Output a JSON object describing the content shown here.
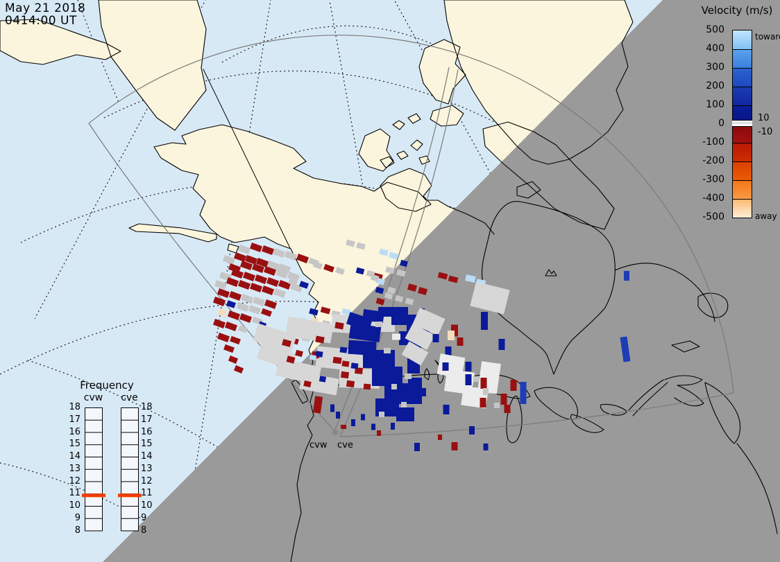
{
  "title_block": {
    "line1": "May 21 2018",
    "line2": "0414:00 UT"
  },
  "colorbar": {
    "title": "Velocity (m/s)",
    "toward": "toward",
    "away": "away",
    "zero_upper": "10",
    "zero_lower": "-10",
    "ticks": [
      "500",
      "400",
      "300",
      "200",
      "100",
      "0",
      "-100",
      "-200",
      "-300",
      "-400",
      "-500"
    ],
    "blocks": [
      [
        "#c3e5ff",
        "#7fc1f5"
      ],
      [
        "#59a2ec",
        "#3a7fdd"
      ],
      [
        "#2c63cf",
        "#1e49bd"
      ],
      [
        "#1a3cb0",
        "#10289f"
      ],
      [
        "#0b1d97",
        "#071384"
      ],
      [
        "#8a0b0b",
        "#a31111"
      ],
      [
        "#b81a06",
        "#cb2d03"
      ],
      [
        "#d94100",
        "#e85b07"
      ],
      [
        "#f2761a",
        "#f99a45"
      ],
      [
        "#fdba75",
        "#ffeed6"
      ]
    ]
  },
  "frequency_panel": {
    "title": "Frequency",
    "col1": "cvw",
    "col2": "cve",
    "scale": [
      18,
      17,
      16,
      15,
      14,
      13,
      12,
      11,
      10,
      9,
      8
    ],
    "markers": {
      "cvw": 10.85,
      "cve": 10.85
    },
    "marker_color": "#f23d00"
  },
  "radar_labels": {
    "west": "cvw",
    "east": "cve"
  },
  "map": {
    "colors": {
      "ocean": "#d8e9f6",
      "land": "#faf5dc",
      "night": "#9a9a9a",
      "coast": "#000000",
      "fov": "#7a7a7a",
      "graticule": "#1a1a1a",
      "radar_dot": "#8a8a8a"
    },
    "palette": {
      "R": "#9a1010",
      "N": "#0a1a99",
      "B": "#1d3cb5",
      "G": "#c6c6c6",
      "L": "#d7d7d7",
      "W": "#ececec",
      "S": "#badcf7",
      "P": "#f5dcc0"
    },
    "cells": [
      [
        352,
        360,
        16,
        9,
        20,
        "G"
      ],
      [
        369,
        357,
        16,
        9,
        20,
        "R"
      ],
      [
        386,
        361,
        16,
        9,
        20,
        "R"
      ],
      [
        402,
        365,
        16,
        9,
        20,
        "G"
      ],
      [
        419,
        369,
        16,
        9,
        20,
        "G"
      ],
      [
        436,
        373,
        16,
        9,
        20,
        "R"
      ],
      [
        452,
        378,
        14,
        8,
        20,
        "G"
      ],
      [
        330,
        375,
        16,
        9,
        20,
        "G"
      ],
      [
        346,
        371,
        16,
        9,
        20,
        "R"
      ],
      [
        362,
        375,
        16,
        9,
        20,
        "R"
      ],
      [
        378,
        379,
        16,
        9,
        20,
        "R"
      ],
      [
        394,
        383,
        16,
        9,
        20,
        "G"
      ],
      [
        410,
        387,
        16,
        9,
        20,
        "G"
      ],
      [
        338,
        387,
        16,
        9,
        20,
        "R"
      ],
      [
        355,
        383,
        16,
        9,
        20,
        "R"
      ],
      [
        372,
        387,
        16,
        9,
        20,
        "R"
      ],
      [
        389,
        391,
        16,
        9,
        20,
        "R"
      ],
      [
        406,
        395,
        16,
        9,
        20,
        "G"
      ],
      [
        423,
        399,
        16,
        9,
        20,
        "G"
      ],
      [
        325,
        399,
        16,
        9,
        20,
        "G"
      ],
      [
        342,
        395,
        16,
        9,
        20,
        "R"
      ],
      [
        359,
        399,
        16,
        9,
        20,
        "R"
      ],
      [
        376,
        403,
        16,
        9,
        20,
        "R"
      ],
      [
        393,
        407,
        16,
        9,
        20,
        "R"
      ],
      [
        410,
        411,
        16,
        9,
        20,
        "R"
      ],
      [
        427,
        415,
        16,
        9,
        20,
        "G"
      ],
      [
        318,
        411,
        16,
        9,
        20,
        "G"
      ],
      [
        335,
        407,
        16,
        9,
        20,
        "R"
      ],
      [
        352,
        411,
        16,
        9,
        20,
        "R"
      ],
      [
        369,
        415,
        16,
        9,
        20,
        "R"
      ],
      [
        386,
        419,
        16,
        9,
        20,
        "R"
      ],
      [
        403,
        423,
        16,
        9,
        20,
        "G"
      ],
      [
        322,
        423,
        16,
        9,
        20,
        "R"
      ],
      [
        339,
        427,
        16,
        9,
        20,
        "R"
      ],
      [
        356,
        431,
        16,
        9,
        20,
        "G"
      ],
      [
        373,
        435,
        16,
        9,
        20,
        "G"
      ],
      [
        390,
        439,
        16,
        9,
        20,
        "R"
      ],
      [
        316,
        435,
        16,
        9,
        20,
        "R"
      ],
      [
        333,
        439,
        12,
        8,
        20,
        "N"
      ],
      [
        350,
        443,
        16,
        9,
        20,
        "G"
      ],
      [
        367,
        447,
        16,
        9,
        20,
        "G"
      ],
      [
        384,
        451,
        14,
        8,
        20,
        "R"
      ],
      [
        320,
        451,
        12,
        9,
        20,
        "P"
      ],
      [
        337,
        455,
        16,
        9,
        20,
        "R"
      ],
      [
        354,
        459,
        16,
        9,
        20,
        "R"
      ],
      [
        371,
        463,
        14,
        8,
        20,
        "G"
      ],
      [
        316,
        467,
        16,
        9,
        20,
        "R"
      ],
      [
        333,
        471,
        16,
        9,
        20,
        "R"
      ],
      [
        350,
        475,
        12,
        8,
        20,
        "G"
      ],
      [
        378,
        469,
        10,
        8,
        20,
        "N"
      ],
      [
        322,
        487,
        16,
        9,
        20,
        "R"
      ],
      [
        339,
        491,
        14,
        8,
        20,
        "R"
      ],
      [
        330,
        503,
        14,
        8,
        20,
        "R"
      ],
      [
        336,
        519,
        12,
        8,
        22,
        "R"
      ],
      [
        344,
        533,
        12,
        8,
        22,
        "R"
      ],
      [
        438,
        411,
        12,
        8,
        20,
        "N"
      ],
      [
        422,
        407,
        12,
        8,
        20,
        "G"
      ],
      [
        458,
        383,
        12,
        8,
        20,
        "G"
      ],
      [
        474,
        387,
        14,
        8,
        20,
        "R"
      ],
      [
        490,
        391,
        12,
        8,
        20,
        "G"
      ],
      [
        455,
        469,
        10,
        7,
        20,
        "S"
      ],
      [
        505,
        351,
        12,
        8,
        15,
        "G"
      ],
      [
        520,
        355,
        12,
        8,
        15,
        "G"
      ],
      [
        553,
        364,
        12,
        8,
        15,
        "S"
      ],
      [
        567,
        369,
        12,
        8,
        15,
        "S"
      ],
      [
        582,
        380,
        10,
        8,
        15,
        "N"
      ],
      [
        452,
        450,
        12,
        8,
        15,
        "N"
      ],
      [
        469,
        448,
        13,
        8,
        15,
        "R"
      ],
      [
        484,
        453,
        12,
        8,
        15,
        "G"
      ],
      [
        499,
        450,
        12,
        8,
        15,
        "S"
      ],
      [
        437,
        463,
        10,
        7,
        15,
        "S"
      ],
      [
        453,
        463,
        11,
        8,
        15,
        "P"
      ],
      [
        470,
        467,
        11,
        8,
        15,
        "G"
      ],
      [
        435,
        471,
        11,
        8,
        15,
        "N"
      ],
      [
        424,
        492,
        12,
        8,
        15,
        "R"
      ],
      [
        441,
        488,
        11,
        8,
        15,
        "G"
      ],
      [
        519,
        391,
        11,
        8,
        15,
        "N"
      ],
      [
        534,
        395,
        11,
        8,
        15,
        "G"
      ],
      [
        545,
        399,
        12,
        8,
        15,
        "R"
      ],
      [
        547,
        419,
        11,
        8,
        15,
        "N"
      ],
      [
        564,
        419,
        11,
        8,
        15,
        "G"
      ],
      [
        594,
        415,
        12,
        9,
        15,
        "R"
      ],
      [
        609,
        420,
        12,
        9,
        15,
        "R"
      ],
      [
        396,
        488,
        58,
        26,
        18,
        "L"
      ],
      [
        446,
        476,
        66,
        28,
        10,
        "L"
      ],
      [
        506,
        468,
        56,
        26,
        4,
        "L"
      ],
      [
        398,
        514,
        52,
        24,
        18,
        "L"
      ],
      [
        430,
        536,
        62,
        26,
        12,
        "L"
      ],
      [
        490,
        518,
        68,
        30,
        6,
        "L"
      ],
      [
        518,
        546,
        58,
        28,
        2,
        "L"
      ],
      [
        460,
        554,
        54,
        24,
        10,
        "L"
      ],
      [
        550,
        468,
        38,
        22,
        0,
        "L"
      ],
      [
        413,
        495,
        12,
        9,
        15,
        "R"
      ],
      [
        419,
        519,
        11,
        9,
        15,
        "R"
      ],
      [
        431,
        510,
        10,
        8,
        15,
        "R"
      ],
      [
        461,
        490,
        12,
        9,
        10,
        "R"
      ],
      [
        489,
        470,
        12,
        9,
        10,
        "R"
      ],
      [
        515,
        475,
        11,
        9,
        8,
        "R"
      ],
      [
        455,
        512,
        11,
        9,
        10,
        "R"
      ],
      [
        486,
        520,
        12,
        9,
        8,
        "R"
      ],
      [
        497,
        541,
        11,
        9,
        8,
        "R"
      ],
      [
        498,
        525,
        10,
        8,
        8,
        "R"
      ],
      [
        517,
        535,
        11,
        9,
        6,
        "R"
      ],
      [
        505,
        554,
        11,
        9,
        8,
        "R"
      ],
      [
        443,
        554,
        10,
        8,
        12,
        "R"
      ],
      [
        460,
        511,
        10,
        8,
        10,
        "N"
      ],
      [
        495,
        505,
        10,
        8,
        8,
        "N"
      ],
      [
        511,
        528,
        10,
        8,
        8,
        "N"
      ],
      [
        465,
        547,
        9,
        8,
        10,
        "N"
      ],
      [
        534,
        526,
        10,
        8,
        6,
        "N"
      ],
      [
        451,
        516,
        9,
        7,
        10,
        "S"
      ],
      [
        529,
        558,
        10,
        8,
        4,
        "R"
      ],
      [
        458,
        584,
        11,
        24,
        8,
        "R"
      ],
      [
        479,
        589,
        6,
        11,
        0,
        "N"
      ],
      [
        487,
        599,
        6,
        10,
        0,
        "N"
      ],
      [
        509,
        610,
        6,
        10,
        0,
        "N"
      ],
      [
        495,
        616,
        8,
        6,
        0,
        "R"
      ],
      [
        523,
        602,
        6,
        9,
        0,
        "N"
      ],
      [
        538,
        616,
        6,
        9,
        0,
        "N"
      ],
      [
        566,
        615,
        6,
        10,
        0,
        "N"
      ],
      [
        546,
        625,
        6,
        8,
        0,
        "R"
      ],
      [
        518,
        464,
        34,
        18,
        18,
        "N"
      ],
      [
        538,
        456,
        30,
        16,
        8,
        "N"
      ],
      [
        558,
        450,
        26,
        14,
        0,
        "N"
      ],
      [
        576,
        456,
        24,
        26,
        0,
        "N"
      ],
      [
        526,
        480,
        44,
        22,
        8,
        "N"
      ],
      [
        522,
        502,
        40,
        20,
        4,
        "N"
      ],
      [
        546,
        518,
        46,
        26,
        0,
        "N"
      ],
      [
        558,
        543,
        44,
        28,
        0,
        "N"
      ],
      [
        574,
        568,
        40,
        30,
        0,
        "N"
      ],
      [
        558,
        588,
        34,
        26,
        0,
        "N"
      ],
      [
        584,
        598,
        26,
        20,
        0,
        "N"
      ],
      [
        598,
        564,
        20,
        38,
        0,
        "N"
      ],
      [
        594,
        468,
        16,
        28,
        0,
        "N"
      ],
      [
        586,
        488,
        22,
        20,
        0,
        "N"
      ],
      [
        600,
        498,
        14,
        22,
        0,
        "N"
      ],
      [
        596,
        526,
        18,
        26,
        0,
        "N"
      ],
      [
        614,
        478,
        9,
        14,
        0,
        "N"
      ],
      [
        620,
        460,
        8,
        12,
        0,
        "N"
      ],
      [
        608,
        450,
        8,
        10,
        0,
        "N"
      ],
      [
        601,
        645,
        8,
        12,
        0,
        "N"
      ],
      [
        546,
        468,
        10,
        8,
        0,
        "G"
      ],
      [
        571,
        486,
        12,
        9,
        0,
        "W"
      ],
      [
        558,
        506,
        10,
        8,
        0,
        "G"
      ],
      [
        588,
        543,
        10,
        8,
        0,
        "G"
      ],
      [
        568,
        558,
        8,
        8,
        0,
        "G"
      ],
      [
        550,
        598,
        8,
        8,
        0,
        "G"
      ],
      [
        582,
        584,
        8,
        8,
        0,
        "G"
      ],
      [
        548,
        406,
        12,
        8,
        18,
        "S"
      ],
      [
        540,
        401,
        11,
        8,
        18,
        "G"
      ],
      [
        562,
        390,
        12,
        8,
        16,
        "G"
      ],
      [
        578,
        394,
        12,
        8,
        16,
        "G"
      ],
      [
        638,
        398,
        13,
        8,
        14,
        "R"
      ],
      [
        653,
        403,
        13,
        8,
        14,
        "R"
      ],
      [
        678,
        402,
        14,
        9,
        12,
        "S"
      ],
      [
        693,
        408,
        13,
        9,
        12,
        "S"
      ],
      [
        560,
        427,
        11,
        8,
        16,
        "G"
      ],
      [
        575,
        431,
        11,
        8,
        16,
        "G"
      ],
      [
        590,
        435,
        11,
        8,
        16,
        "G"
      ],
      [
        548,
        435,
        11,
        8,
        16,
        "R"
      ],
      [
        706,
        430,
        50,
        36,
        14,
        "L"
      ],
      [
        618,
        464,
        40,
        26,
        24,
        "L"
      ],
      [
        605,
        486,
        36,
        24,
        28,
        "L"
      ],
      [
        598,
        510,
        32,
        22,
        30,
        "L"
      ],
      [
        655,
        477,
        10,
        17,
        0,
        "R"
      ],
      [
        663,
        493,
        9,
        12,
        0,
        "R"
      ],
      [
        650,
        484,
        10,
        14,
        0,
        "P"
      ],
      [
        646,
        507,
        9,
        14,
        0,
        "N"
      ],
      [
        628,
        488,
        9,
        12,
        0,
        "N"
      ],
      [
        698,
        463,
        10,
        26,
        0,
        "N"
      ],
      [
        723,
        497,
        9,
        16,
        0,
        "N"
      ],
      [
        650,
        528,
        36,
        30,
        10,
        "W"
      ],
      [
        662,
        551,
        40,
        32,
        8,
        "W"
      ],
      [
        684,
        573,
        36,
        28,
        8,
        "W"
      ],
      [
        705,
        545,
        28,
        44,
        8,
        "W"
      ],
      [
        675,
        529,
        9,
        14,
        0,
        "N"
      ],
      [
        642,
        529,
        9,
        12,
        0,
        "N"
      ],
      [
        675,
        548,
        9,
        16,
        0,
        "N"
      ],
      [
        610,
        566,
        8,
        12,
        0,
        "N"
      ],
      [
        643,
        591,
        9,
        14,
        0,
        "N"
      ],
      [
        697,
        553,
        9,
        16,
        0,
        "R"
      ],
      [
        740,
        556,
        9,
        16,
        0,
        "R"
      ],
      [
        726,
        576,
        9,
        16,
        0,
        "R"
      ],
      [
        731,
        590,
        9,
        12,
        0,
        "R"
      ],
      [
        696,
        581,
        9,
        14,
        0,
        "R"
      ],
      [
        700,
        565,
        8,
        10,
        0,
        "G"
      ],
      [
        716,
        585,
        8,
        8,
        0,
        "G"
      ],
      [
        686,
        547,
        8,
        8,
        0,
        "G"
      ],
      [
        754,
        567,
        9,
        32,
        0,
        "B"
      ],
      [
        901,
        504,
        10,
        36,
        -8,
        "B"
      ],
      [
        903,
        398,
        8,
        14,
        0,
        "B"
      ],
      [
        680,
        621,
        8,
        12,
        0,
        "N"
      ],
      [
        655,
        644,
        9,
        12,
        0,
        "R"
      ],
      [
        700,
        645,
        7,
        10,
        0,
        "N"
      ],
      [
        634,
        631,
        6,
        8,
        0,
        "R"
      ]
    ]
  }
}
